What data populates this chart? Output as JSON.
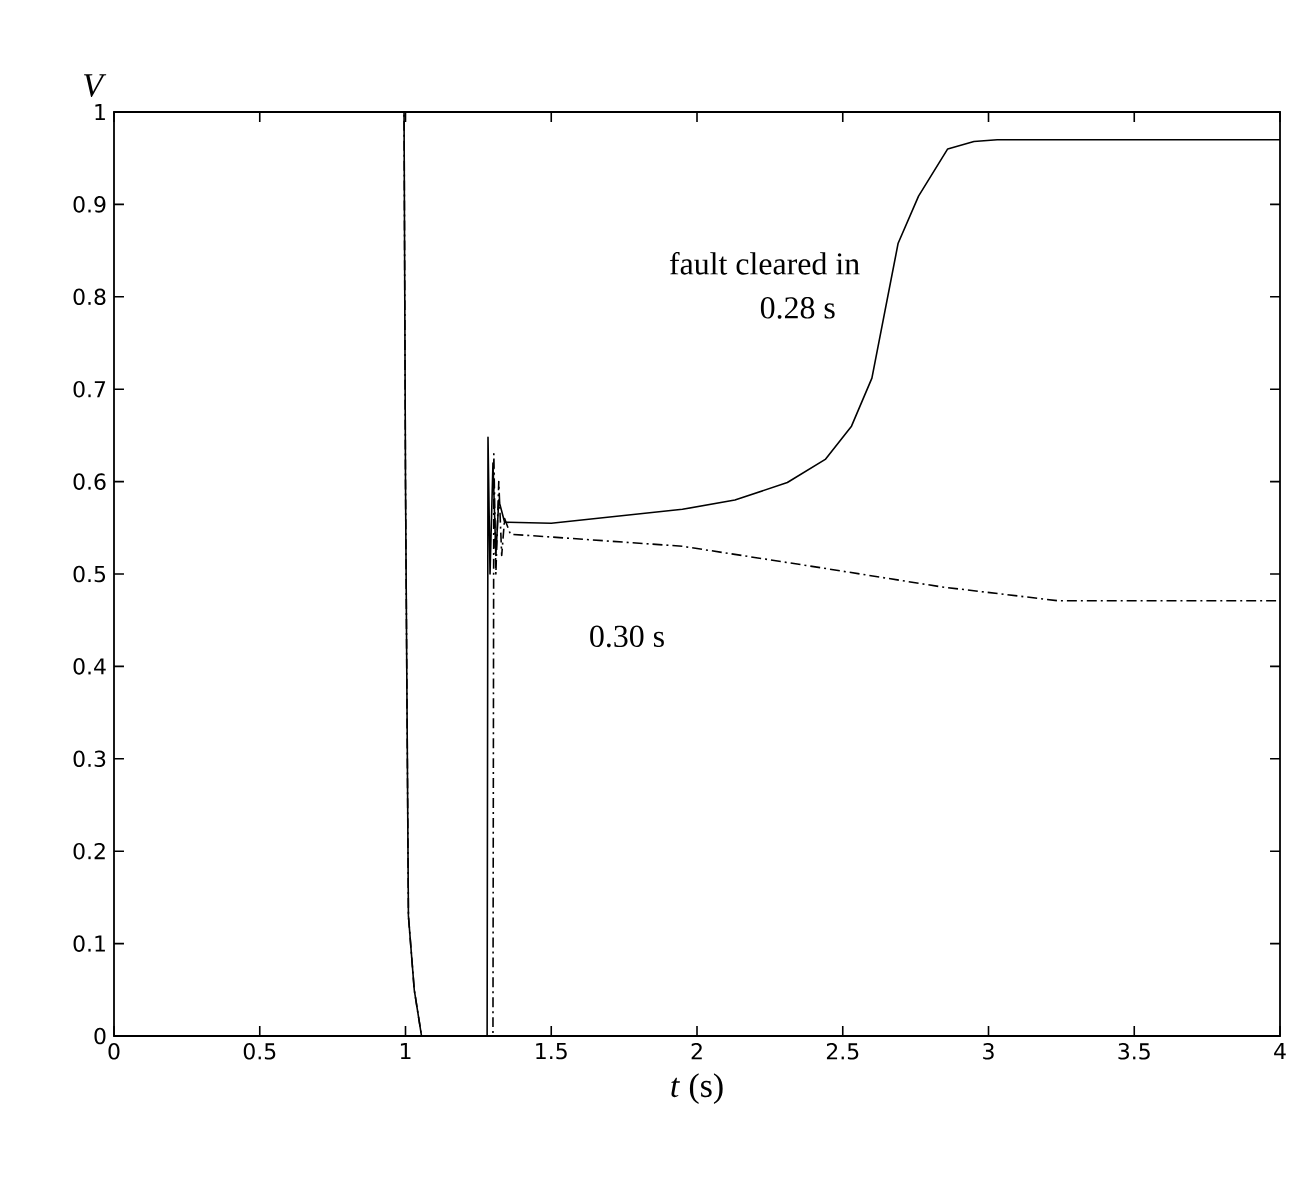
{
  "chart_data": {
    "type": "line",
    "xlabel": "*t* (s)",
    "ylabel": "V",
    "xlim": [
      0,
      4
    ],
    "ylim": [
      0,
      1
    ],
    "xticks": [
      0,
      0.5,
      1,
      1.5,
      2,
      2.5,
      3,
      3.5,
      4
    ],
    "yticks": [
      0,
      0.1,
      0.2,
      0.3,
      0.4,
      0.5,
      0.6,
      0.7,
      0.8,
      0.9,
      1
    ],
    "grid": false,
    "legend": false,
    "marker": "none",
    "series": [
      {
        "name": "0.28 s",
        "color": "#000000",
        "line_style": "solid",
        "x": [
          0,
          0.995,
          1.0,
          1.01,
          1.03,
          1.055,
          1.28,
          1.283,
          1.29,
          1.3,
          1.31,
          1.32,
          1.34,
          1.5,
          1.95,
          2.13,
          2.31,
          2.44,
          2.53,
          2.6,
          2.645,
          2.69,
          2.76,
          2.86,
          2.95,
          3.03,
          4.0
        ],
        "values": [
          1,
          1,
          0.6,
          0.13,
          0.05,
          0,
          0,
          0.648,
          0.5,
          0.62,
          0.52,
          0.58,
          0.556,
          0.555,
          0.57,
          0.58,
          0.599,
          0.624,
          0.66,
          0.712,
          0.785,
          0.858,
          0.909,
          0.96,
          0.968,
          0.97,
          0.97
        ]
      },
      {
        "name": "0.30 s",
        "color": "#000000",
        "line_style": "dashed",
        "x": [
          0,
          0.995,
          1.0,
          1.01,
          1.03,
          1.055,
          1.3,
          1.303,
          1.31,
          1.32,
          1.33,
          1.34,
          1.36,
          1.5,
          1.95,
          2.4,
          2.84,
          3.24,
          4.0
        ],
        "values": [
          1,
          1,
          0.6,
          0.13,
          0.05,
          0,
          0,
          0.63,
          0.5,
          0.6,
          0.52,
          0.56,
          0.543,
          0.54,
          0.53,
          0.508,
          0.486,
          0.471,
          0.471
        ]
      }
    ],
    "annotations": [
      "fault cleared in"
    ]
  }
}
